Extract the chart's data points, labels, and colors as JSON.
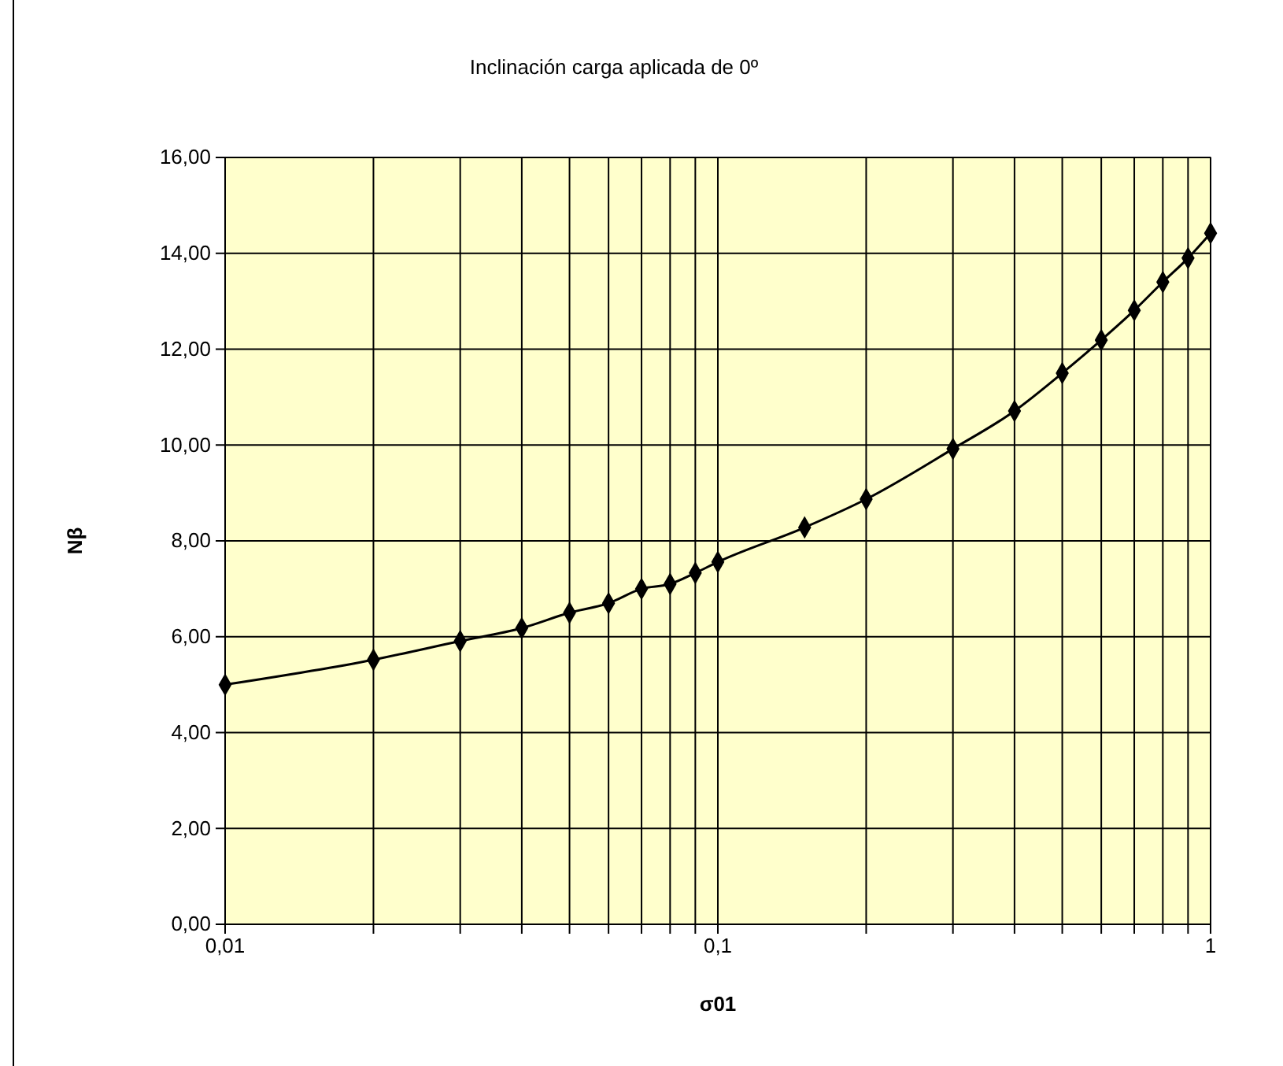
{
  "chart_data": {
    "type": "line",
    "title": "Inclinación carga aplicada de 0º",
    "xlabel": "σ01",
    "ylabel": "Nβ",
    "log": "x",
    "grid": true,
    "marker": "diamond",
    "line_style": "solid",
    "x": [
      0.01,
      0.02,
      0.03,
      0.04,
      0.05,
      0.06,
      0.07,
      0.08,
      0.09,
      0.1,
      0.15,
      0.2,
      0.3,
      0.4,
      0.5,
      0.6,
      0.7,
      0.8,
      0.9,
      1
    ],
    "series": [
      {
        "color": "#000000",
        "values": [
          5.0,
          5.52,
          5.91,
          6.18,
          6.5,
          6.7,
          7.0,
          7.1,
          7.33,
          7.56,
          8.28,
          8.87,
          9.92,
          10.71,
          11.5,
          12.19,
          12.81,
          13.4,
          13.9,
          14.42
        ]
      }
    ],
    "xlim": [
      0.01,
      1
    ],
    "xticks": [
      {
        "value": 0.01,
        "label": "0,01"
      },
      {
        "value": 0.02,
        "label": null
      },
      {
        "value": 0.03,
        "label": null
      },
      {
        "value": 0.04,
        "label": null
      },
      {
        "value": 0.05,
        "label": null
      },
      {
        "value": 0.06,
        "label": null
      },
      {
        "value": 0.07,
        "label": null
      },
      {
        "value": 0.08,
        "label": null
      },
      {
        "value": 0.09,
        "label": null
      },
      {
        "value": 0.1,
        "label": "0,1"
      },
      {
        "value": 0.2,
        "label": null
      },
      {
        "value": 0.3,
        "label": null
      },
      {
        "value": 0.4,
        "label": null
      },
      {
        "value": 0.5,
        "label": null
      },
      {
        "value": 0.6,
        "label": null
      },
      {
        "value": 0.7,
        "label": null
      },
      {
        "value": 0.8,
        "label": null
      },
      {
        "value": 0.9,
        "label": null
      },
      {
        "value": 1,
        "label": "1"
      }
    ],
    "ylim": [
      0,
      16
    ],
    "yticks": [
      {
        "value": 0,
        "label": "0,00"
      },
      {
        "value": 2,
        "label": "2,00"
      },
      {
        "value": 4,
        "label": "4,00"
      },
      {
        "value": 6,
        "label": "6,00"
      },
      {
        "value": 8,
        "label": "8,00"
      },
      {
        "value": 10,
        "label": "10,00"
      },
      {
        "value": 12,
        "label": "12,00"
      },
      {
        "value": 14,
        "label": "14,00"
      },
      {
        "value": 16,
        "label": "16,00"
      }
    ]
  }
}
